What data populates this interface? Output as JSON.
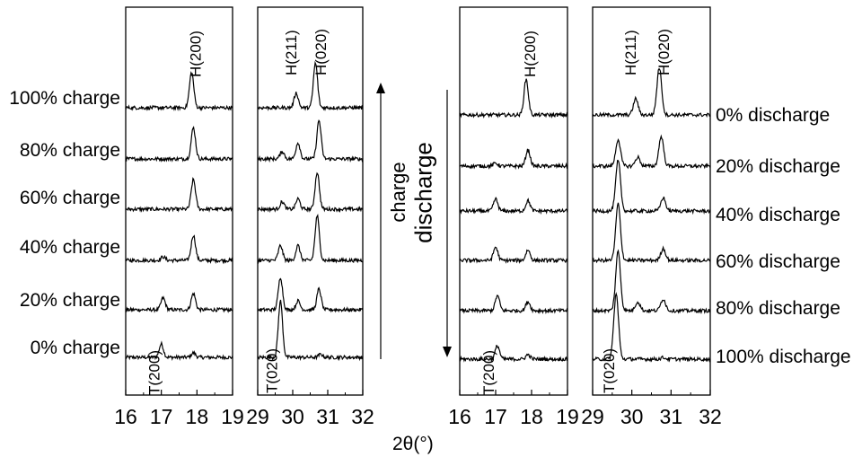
{
  "chart_data": {
    "type": "line",
    "xlabel": "2θ(°)",
    "direction_labels": {
      "charge": "charge",
      "discharge": "discharge"
    },
    "charge_labels": [
      "100% charge",
      "80% charge",
      "60% charge",
      "40% charge",
      "20% charge",
      "0% charge"
    ],
    "discharge_labels": [
      "0% discharge",
      "20% discharge",
      "40% discharge",
      "60% discharge",
      "80% discharge",
      "100% discharge"
    ],
    "panels": [
      {
        "xlim": [
          16,
          19
        ],
        "ticks": [
          "16",
          "17",
          "18",
          "19"
        ],
        "peak_labels": [
          {
            "text": "H(200)",
            "x": 18.1
          },
          {
            "text": "T(200)",
            "x": 16.95
          }
        ],
        "stack": "charge",
        "traces": [
          {
            "peaks": [
              {
                "x": 17.0,
                "h": 0.45
              },
              {
                "x": 17.9,
                "h": 0.15
              }
            ]
          },
          {
            "peaks": [
              {
                "x": 17.05,
                "h": 0.4
              },
              {
                "x": 17.9,
                "h": 0.55
              }
            ]
          },
          {
            "peaks": [
              {
                "x": 17.05,
                "h": 0.12
              },
              {
                "x": 17.9,
                "h": 0.85
              }
            ]
          },
          {
            "peaks": [
              {
                "x": 17.9,
                "h": 1.0
              }
            ]
          },
          {
            "peaks": [
              {
                "x": 17.9,
                "h": 1.05
              }
            ]
          },
          {
            "peaks": [
              {
                "x": 17.85,
                "h": 1.2
              }
            ]
          }
        ]
      },
      {
        "xlim": [
          29,
          32
        ],
        "ticks": [
          "29",
          "30",
          "31",
          "32"
        ],
        "peak_labels": [
          {
            "text": "H(211)",
            "x": 30.1
          },
          {
            "text": "H(020)",
            "x": 30.95
          },
          {
            "text": "T(020)",
            "x": 29.55
          }
        ],
        "stack": "charge",
        "traces": [
          {
            "peaks": [
              {
                "x": 29.65,
                "h": 1.9
              },
              {
                "x": 30.8,
                "h": 0.1
              }
            ]
          },
          {
            "peaks": [
              {
                "x": 29.65,
                "h": 1.1
              },
              {
                "x": 30.15,
                "h": 0.3
              },
              {
                "x": 30.75,
                "h": 0.7
              }
            ]
          },
          {
            "peaks": [
              {
                "x": 29.65,
                "h": 0.5
              },
              {
                "x": 30.15,
                "h": 0.5
              },
              {
                "x": 30.7,
                "h": 1.5
              }
            ]
          },
          {
            "peaks": [
              {
                "x": 29.7,
                "h": 0.25
              },
              {
                "x": 30.15,
                "h": 0.35
              },
              {
                "x": 30.7,
                "h": 1.25
              }
            ]
          },
          {
            "peaks": [
              {
                "x": 29.7,
                "h": 0.25
              },
              {
                "x": 30.15,
                "h": 0.55
              },
              {
                "x": 30.75,
                "h": 1.3
              }
            ]
          },
          {
            "peaks": [
              {
                "x": 30.1,
                "h": 0.5
              },
              {
                "x": 30.65,
                "h": 1.5
              }
            ]
          }
        ]
      },
      {
        "xlim": [
          16,
          19
        ],
        "ticks": [
          "16",
          "17",
          "18",
          "19"
        ],
        "peak_labels": [
          {
            "text": "H(200)",
            "x": 18.1
          },
          {
            "text": "T(200)",
            "x": 16.95
          }
        ],
        "stack": "discharge",
        "traces": [
          {
            "peaks": [
              {
                "x": 17.85,
                "h": 1.2
              }
            ]
          },
          {
            "peaks": [
              {
                "x": 17.0,
                "h": 0.1
              },
              {
                "x": 17.9,
                "h": 0.55
              }
            ]
          },
          {
            "peaks": [
              {
                "x": 17.0,
                "h": 0.4
              },
              {
                "x": 17.9,
                "h": 0.35
              }
            ]
          },
          {
            "peaks": [
              {
                "x": 17.0,
                "h": 0.45
              },
              {
                "x": 17.9,
                "h": 0.35
              }
            ]
          },
          {
            "peaks": [
              {
                "x": 17.05,
                "h": 0.5
              },
              {
                "x": 17.9,
                "h": 0.3
              }
            ]
          },
          {
            "peaks": [
              {
                "x": 17.05,
                "h": 0.45
              },
              {
                "x": 17.9,
                "h": 0.15
              }
            ]
          }
        ]
      },
      {
        "xlim": [
          29,
          32
        ],
        "ticks": [
          "29",
          "30",
          "31",
          "32"
        ],
        "peak_labels": [
          {
            "text": "H(211)",
            "x": 30.1
          },
          {
            "text": "H(020)",
            "x": 30.95
          },
          {
            "text": "T(020)",
            "x": 29.55
          }
        ],
        "stack": "discharge",
        "traces": [
          {
            "peaks": [
              {
                "x": 30.1,
                "h": 0.55
              },
              {
                "x": 30.7,
                "h": 1.6
              }
            ]
          },
          {
            "peaks": [
              {
                "x": 29.65,
                "h": 0.9
              },
              {
                "x": 30.15,
                "h": 0.3
              },
              {
                "x": 30.75,
                "h": 1.0
              }
            ]
          },
          {
            "peaks": [
              {
                "x": 29.65,
                "h": 1.7
              },
              {
                "x": 30.8,
                "h": 0.45
              }
            ]
          },
          {
            "peaks": [
              {
                "x": 29.65,
                "h": 1.9
              },
              {
                "x": 30.8,
                "h": 0.4
              }
            ]
          },
          {
            "peaks": [
              {
                "x": 29.65,
                "h": 2.0
              },
              {
                "x": 30.15,
                "h": 0.3
              },
              {
                "x": 30.8,
                "h": 0.4
              }
            ]
          },
          {
            "peaks": [
              {
                "x": 29.6,
                "h": 2.2
              },
              {
                "x": 30.8,
                "h": 0.05
              }
            ]
          }
        ]
      }
    ]
  }
}
